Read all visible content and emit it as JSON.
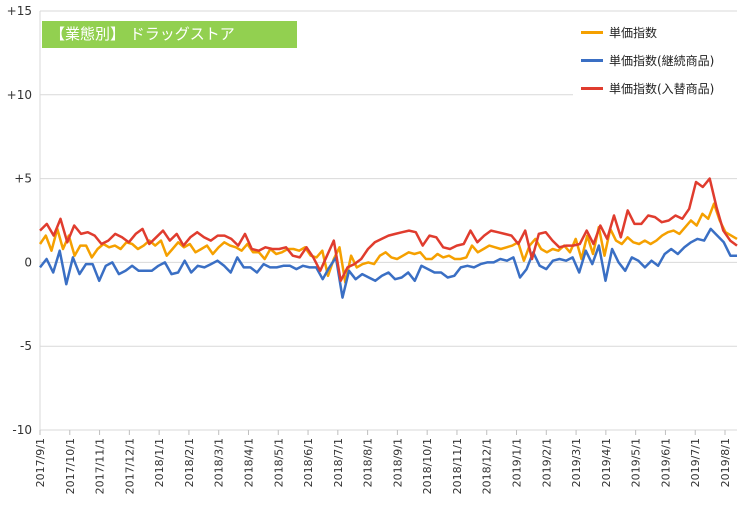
{
  "chart_data": {
    "type": "line",
    "title": "【業態別】 ドラッグストア",
    "ylim": [
      -10,
      15
    ],
    "yticks": [
      "+15",
      "+10",
      "+5",
      "0",
      "-5",
      "-10"
    ],
    "grid": "horizontal",
    "legend_position": "top-right",
    "x_labels": [
      "2017/9/1",
      "2017/10/1",
      "2017/11/1",
      "2017/12/1",
      "2018/1/1",
      "2018/2/1",
      "2018/3/1",
      "2018/4/1",
      "2018/5/1",
      "2018/6/1",
      "2018/7/1",
      "2018/8/1",
      "2018/9/1",
      "2018/10/1",
      "2018/11/1",
      "2018/12/1",
      "2019/1/1",
      "2019/2/1",
      "2019/3/1",
      "2019/4/1",
      "2019/5/1",
      "2019/6/1",
      "2019/7/1",
      "2019/8/1"
    ],
    "series": [
      {
        "name": "単価指数",
        "color": "#f5a000",
        "values": [
          1.1,
          1.6,
          0.7,
          2.0,
          0.8,
          1.6,
          0.4,
          1.0,
          1.0,
          0.3,
          0.8,
          1.1,
          0.9,
          1.0,
          0.8,
          1.2,
          1.1,
          0.8,
          1.0,
          1.3,
          1.0,
          1.3,
          0.4,
          0.8,
          1.2,
          0.9,
          1.1,
          0.6,
          0.8,
          1.0,
          0.5,
          0.9,
          1.2,
          1.0,
          0.9,
          0.7,
          1.1,
          0.6,
          0.6,
          0.2,
          0.8,
          0.5,
          0.6,
          0.8,
          0.8,
          0.7,
          0.9,
          0.4,
          0.3,
          0.7,
          -0.8,
          0.2,
          0.9,
          -1.2,
          0.4,
          -0.3,
          -0.1,
          0.0,
          -0.1,
          0.4,
          0.6,
          0.3,
          0.2,
          0.4,
          0.6,
          0.5,
          0.6,
          0.2,
          0.2,
          0.5,
          0.3,
          0.4,
          0.2,
          0.2,
          0.3,
          1.0,
          0.6,
          0.8,
          1.0,
          0.9,
          0.8,
          0.9,
          1.0,
          1.2,
          0.1,
          1.0,
          1.4,
          0.8,
          0.6,
          0.8,
          0.7,
          1.0,
          0.6,
          1.4,
          0.2,
          1.6,
          0.5,
          2.1,
          0.4,
          2.0,
          1.3,
          1.1,
          1.5,
          1.2,
          1.1,
          1.3,
          1.1,
          1.3,
          1.6,
          1.8,
          1.9,
          1.7,
          2.1,
          2.5,
          2.2,
          2.9,
          2.6,
          3.5,
          2.5,
          1.8,
          1.6,
          1.4
        ]
      },
      {
        "name": "単価指数(継続商品)",
        "color": "#3a6fc4",
        "values": [
          -0.3,
          0.2,
          -0.6,
          0.7,
          -1.3,
          0.3,
          -0.7,
          -0.1,
          -0.1,
          -1.1,
          -0.2,
          0.0,
          -0.7,
          -0.5,
          -0.2,
          -0.5,
          -0.5,
          -0.5,
          -0.2,
          0.0,
          -0.7,
          -0.6,
          0.1,
          -0.6,
          -0.2,
          -0.3,
          -0.1,
          0.1,
          -0.2,
          -0.6,
          0.3,
          -0.3,
          -0.3,
          -0.6,
          -0.1,
          -0.3,
          -0.3,
          -0.2,
          -0.2,
          -0.4,
          -0.2,
          -0.3,
          -0.3,
          -1.0,
          -0.3,
          0.3,
          -2.1,
          -0.5,
          -1.0,
          -0.7,
          -0.9,
          -1.1,
          -0.8,
          -0.6,
          -1.0,
          -0.9,
          -0.6,
          -1.1,
          -0.2,
          -0.4,
          -0.6,
          -0.6,
          -0.9,
          -0.8,
          -0.3,
          -0.2,
          -0.3,
          -0.1,
          0.0,
          0.0,
          0.2,
          0.1,
          0.3,
          -0.9,
          -0.4,
          0.6,
          -0.2,
          -0.4,
          0.1,
          0.2,
          0.1,
          0.3,
          -0.6,
          0.7,
          -0.1,
          1.0,
          -1.1,
          0.8,
          0.0,
          -0.5,
          0.3,
          0.1,
          -0.3,
          0.1,
          -0.2,
          0.5,
          0.8,
          0.5,
          0.9,
          1.2,
          1.4,
          1.3,
          2.0,
          1.6,
          1.2,
          0.4,
          0.4
        ]
      },
      {
        "name": "単価指数(入替商品)",
        "color": "#e03c2e",
        "values": [
          1.9,
          2.3,
          1.6,
          2.6,
          1.2,
          2.2,
          1.7,
          1.8,
          1.6,
          1.1,
          1.3,
          1.7,
          1.5,
          1.2,
          1.7,
          2.0,
          1.1,
          1.5,
          1.9,
          1.3,
          1.7,
          1.0,
          1.5,
          1.8,
          1.5,
          1.3,
          1.6,
          1.6,
          1.4,
          1.0,
          1.7,
          0.8,
          0.7,
          0.9,
          0.8,
          0.8,
          0.9,
          0.4,
          0.3,
          0.9,
          0.3,
          -0.5,
          0.4,
          1.3,
          -1.1,
          -0.3,
          -0.1,
          0.2,
          0.8,
          1.2,
          1.4,
          1.6,
          1.7,
          1.8,
          1.9,
          1.8,
          1.0,
          1.6,
          1.5,
          0.9,
          0.8,
          1.0,
          1.1,
          1.9,
          1.2,
          1.6,
          1.9,
          1.8,
          1.7,
          1.6,
          1.1,
          1.9,
          0.2,
          1.7,
          1.8,
          1.3,
          0.9,
          1.0,
          1.0,
          1.1,
          1.9,
          1.1,
          2.2,
          1.4,
          2.8,
          1.5,
          3.1,
          2.3,
          2.3,
          2.8,
          2.7,
          2.4,
          2.5,
          2.8,
          2.6,
          3.2,
          4.8,
          4.5,
          5.0,
          3.3,
          1.9,
          1.3,
          1.0
        ]
      }
    ]
  }
}
